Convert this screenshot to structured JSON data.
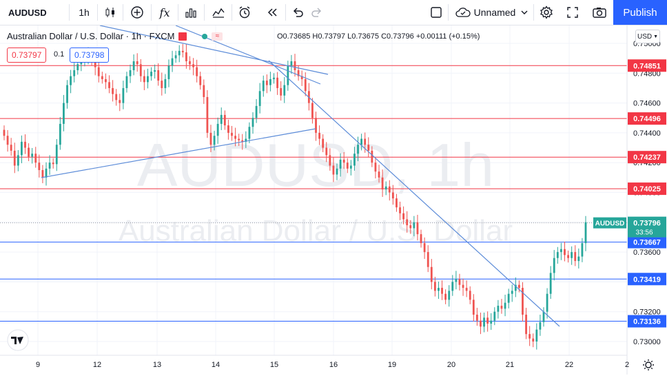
{
  "toolbar": {
    "symbol": "AUDUSD",
    "interval": "1h",
    "layout_name": "Unnamed",
    "publish_label": "Publish"
  },
  "legend": {
    "title": "Australian Dollar / U.S. Dollar · 1h · FXCM",
    "ohlc": "O0.73685 H0.73797 L0.73675 C0.73796 +0.00111 (+0.15%)",
    "sell_price": "0.73797",
    "spread": "0.1",
    "buy_price": "0.73798"
  },
  "watermark": {
    "line1": "AUDUSD, 1h",
    "line2": "Australian Dollar / U.S. Dollar"
  },
  "currency_label": "USD",
  "current": {
    "label": "AUDUSD",
    "price": "0.73796",
    "countdown": "33:56"
  },
  "colors": {
    "up": "#26a69a",
    "down": "#ef5350",
    "resistance": "#f23645",
    "support": "#2962ff",
    "trend": "#5b8bd8",
    "accent": "#2962ff"
  },
  "chart_data": {
    "type": "candlestick",
    "symbol": "AUDUSD",
    "timeframe": "1h",
    "y_ticks": [
      0.73,
      0.732,
      0.734,
      0.736,
      0.738,
      0.74,
      0.742,
      0.744,
      0.746,
      0.748,
      0.75
    ],
    "ylim": [
      0.729,
      0.751
    ],
    "x_ticks": [
      "9",
      "12",
      "13",
      "14",
      "15",
      "16",
      "19",
      "20",
      "21",
      "22",
      "2"
    ],
    "resistance_levels": [
      0.74851,
      0.74496,
      0.74237,
      0.74025
    ],
    "support_levels": [
      0.73667,
      0.73419,
      0.73136
    ],
    "current_price": 0.73796,
    "close_series": [
      0.7438,
      0.7432,
      0.7428,
      0.7418,
      0.7425,
      0.7434,
      0.743,
      0.7424,
      0.7426,
      0.742,
      0.7415,
      0.741,
      0.7416,
      0.742,
      0.7419,
      0.7432,
      0.7446,
      0.746,
      0.7472,
      0.7478,
      0.7482,
      0.7486,
      0.7488,
      0.7491,
      0.7492,
      0.7489,
      0.7484,
      0.7478,
      0.7476,
      0.7474,
      0.747,
      0.7466,
      0.7462,
      0.746,
      0.747,
      0.7478,
      0.7482,
      0.7488,
      0.7486,
      0.7478,
      0.7474,
      0.7478,
      0.7481,
      0.7482,
      0.7475,
      0.747,
      0.7476,
      0.7485,
      0.749,
      0.7492,
      0.7495,
      0.7494,
      0.7488,
      0.7486,
      0.7484,
      0.7478,
      0.7472,
      0.7464,
      0.744,
      0.7432,
      0.7438,
      0.7446,
      0.7452,
      0.7445,
      0.744,
      0.7438,
      0.7436,
      0.7435,
      0.7434,
      0.7436,
      0.7444,
      0.745,
      0.7458,
      0.7468,
      0.7475,
      0.7472,
      0.7476,
      0.7477,
      0.747,
      0.7465,
      0.7472,
      0.7485,
      0.7488,
      0.7482,
      0.7478,
      0.7476,
      0.7468,
      0.746,
      0.745,
      0.744,
      0.7436,
      0.743,
      0.7425,
      0.7418,
      0.7412,
      0.7416,
      0.7422,
      0.742,
      0.7416,
      0.7418,
      0.7426,
      0.7432,
      0.7436,
      0.7432,
      0.7428,
      0.742,
      0.7414,
      0.741,
      0.7402,
      0.7404,
      0.74,
      0.7396,
      0.739,
      0.7386,
      0.7382,
      0.7378,
      0.7376,
      0.738,
      0.7372,
      0.7366,
      0.736,
      0.735,
      0.734,
      0.7334,
      0.7336,
      0.7332,
      0.7328,
      0.7334,
      0.734,
      0.7342,
      0.7338,
      0.7336,
      0.7334,
      0.7328,
      0.7318,
      0.7314,
      0.731,
      0.7316,
      0.7312,
      0.7314,
      0.732,
      0.7324,
      0.7322,
      0.7326,
      0.7332,
      0.7334,
      0.7338,
      0.7336,
      0.7318,
      0.7305,
      0.7302,
      0.73,
      0.7308,
      0.7313,
      0.732,
      0.7332,
      0.7346,
      0.7356,
      0.736,
      0.7362,
      0.7358,
      0.7356,
      0.736,
      0.7354,
      0.7357,
      0.7366,
      0.738
    ]
  }
}
